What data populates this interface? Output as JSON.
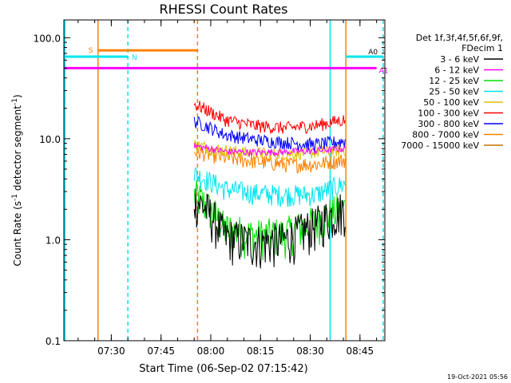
{
  "chart_data": {
    "type": "line",
    "title": "RHESSI Count Rates",
    "xlabel": "Start Time (06-Sep-02 07:15:42)",
    "ylabel_main": "Count Rate (s",
    "ylabel_sup1": "-1",
    "ylabel_mid": " detector segment",
    "ylabel_sup2": "-1",
    "ylabel_end": ")",
    "y_scale": "log",
    "ylim": [
      0.1,
      150
    ],
    "xlim": [
      "07:15:42",
      "08:52:30"
    ],
    "x_ticks": [
      "07:30",
      "07:45",
      "08:00",
      "08:15",
      "08:30",
      "08:45"
    ],
    "y_ticks": [
      "0.1",
      "1.0",
      "10.0",
      "100.0"
    ],
    "legend_header": [
      "Det 1f,3f,4f,5f,6f,9f,",
      "FDecim 1"
    ],
    "timestamp": "19-Oct-2021 05:56",
    "data_window": {
      "start": "07:55:00",
      "end": "08:40:45"
    },
    "series": [
      {
        "name": "3 - 6 keV",
        "color": "#000000",
        "values": [
          2.6,
          1.1,
          0.95,
          1.0,
          1.4,
          2.1
        ]
      },
      {
        "name": "6 - 12 keV",
        "color": "#ff00ff",
        "values": [
          8.5,
          7.5,
          7.3,
          7.4,
          7.6,
          8.0
        ]
      },
      {
        "name": "12 - 25 keV",
        "color": "#00e000",
        "values": [
          2.8,
          1.3,
          1.1,
          1.15,
          1.5,
          2.1
        ]
      },
      {
        "name": "25 - 50 keV",
        "color": "#00e5ee",
        "values": [
          4.5,
          3.2,
          2.9,
          2.8,
          2.8,
          3.6
        ]
      },
      {
        "name": "50 - 100 keV",
        "color": "#ddc000",
        "values": [
          8.7,
          7.6,
          7.2,
          7.1,
          7.4,
          7.8
        ]
      },
      {
        "name": "100 - 300 keV",
        "color": "#ff0000",
        "values": [
          22,
          15.5,
          13.5,
          12.8,
          13.5,
          15.5
        ]
      },
      {
        "name": "300 - 800 keV",
        "color": "#0000ff",
        "values": [
          15,
          11,
          9.8,
          9.2,
          8.8,
          9.5
        ]
      },
      {
        "name": "800 - 7000 keV",
        "color": "#ff8000",
        "values": [
          7.5,
          6.5,
          6.0,
          5.6,
          5.6,
          6.2
        ]
      },
      {
        "name": "7000 - 15000 keV",
        "color": "#c87000",
        "values": []
      }
    ],
    "annotations": [
      {
        "text": "S",
        "color": "#ff8000",
        "bar_start": "07:26:00",
        "bar_end": "07:56:00",
        "value": 75
      },
      {
        "text": "N",
        "color": "#00e5ee",
        "bar_start": "07:15:42",
        "bar_end": "07:35:00",
        "value": 65
      },
      {
        "text": "A0",
        "color": "#00e5ee",
        "bar_start": "08:40:45",
        "bar_end": "08:52:00",
        "value": 65
      },
      {
        "text": "A1",
        "color": "#ff00ff",
        "bar_start": "07:15:42",
        "bar_end": "08:50:00",
        "value": 50
      }
    ],
    "markers": [
      {
        "time": "07:16:00",
        "color": "#00e5ee",
        "dash": false
      },
      {
        "time": "07:26:00",
        "color": "#ff8000",
        "dash": false
      },
      {
        "time": "07:35:00",
        "color": "#00e5ee",
        "dash": true
      },
      {
        "time": "07:56:00",
        "color": "#ff8000",
        "dash": true
      },
      {
        "time": "08:36:00",
        "color": "#00e5ee",
        "dash": false
      },
      {
        "time": "08:40:45",
        "color": "#ff8000",
        "dash": false
      },
      {
        "time": "08:52:00",
        "color": "#00e5ee",
        "dash": true
      }
    ]
  }
}
